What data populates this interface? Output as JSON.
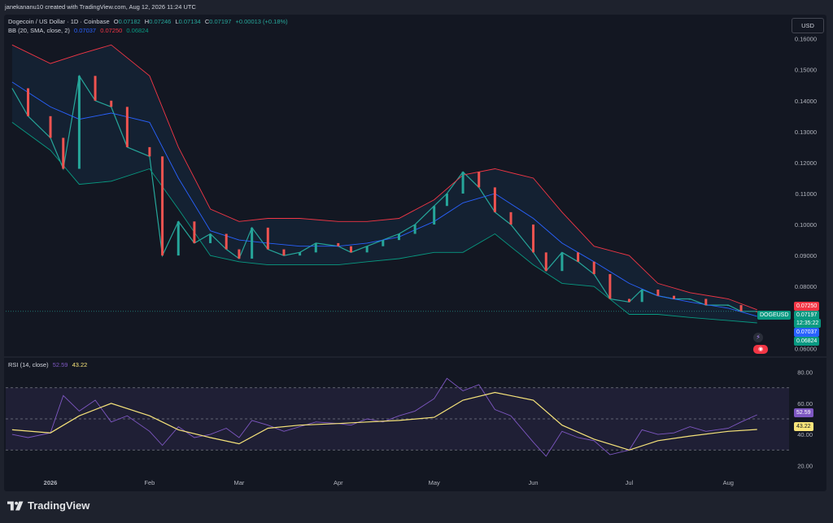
{
  "header": {
    "attribution": "janekananu10 created with TradingView.com, Aug 12, 2026 11:24 UTC"
  },
  "legend": {
    "symbol": "Dogecoin / US Dollar · 1D · Coinbase",
    "o_label": "O",
    "o_value": "0.07182",
    "h_label": "H",
    "h_value": "0.07246",
    "l_label": "L",
    "l_value": "0.07134",
    "c_label": "C",
    "c_value": "0.07197",
    "change": "+0.00013 (+0.18%)",
    "bb_label": "BB (20, SMA, close, 2)",
    "bb_basis": "0.07037",
    "bb_upper": "0.07250",
    "bb_lower": "0.06824",
    "rsi_label": "RSI (14, close)",
    "rsi_value": "52.59",
    "rsi_ma": "43.22"
  },
  "currency_button": "USD",
  "price_tags": {
    "upper": "0.07250",
    "symbol": "DOGEUSD",
    "close": "0.07197",
    "countdown": "12:35:22",
    "basis": "0.07037",
    "lower": "0.06824",
    "rsi": "52.59",
    "rsi_ma": "43.22"
  },
  "footer": {
    "brand": "TradingView"
  },
  "colors": {
    "up": "#26a69a",
    "down": "#ef5350",
    "bb_upper": "#f23645",
    "bb_basis": "#2962ff",
    "bb_lower": "#089981",
    "rsi": "#7e57c2",
    "rsi_ma": "#f7e47a"
  },
  "chart_data": [
    {
      "type": "line",
      "title": "Dogecoin / US Dollar · 1D · Coinbase",
      "y_axis_ticks": [
        "0.16000",
        "0.15000",
        "0.14000",
        "0.13000",
        "0.12000",
        "0.11000",
        "0.10000",
        "0.09000",
        "0.08000",
        "0.07000",
        "0.06000"
      ],
      "ylim": [
        0.058,
        0.162
      ],
      "x_axis_ticks": [
        "2026",
        "Feb",
        "Mar",
        "Apr",
        "May",
        "Jun",
        "Jul",
        "Aug"
      ],
      "xlim": [
        "2025-12-18",
        "2026-08-20"
      ],
      "grid": false,
      "series": [
        {
          "name": "close",
          "x": [
            "2025-12-20",
            "2025-12-25",
            "2026-01-01",
            "2026-01-05",
            "2026-01-10",
            "2026-01-15",
            "2026-01-20",
            "2026-01-25",
            "2026-02-01",
            "2026-02-05",
            "2026-02-10",
            "2026-02-15",
            "2026-02-20",
            "2026-02-25",
            "2026-03-01",
            "2026-03-05",
            "2026-03-10",
            "2026-03-15",
            "2026-03-20",
            "2026-03-25",
            "2026-04-01",
            "2026-04-05",
            "2026-04-10",
            "2026-04-15",
            "2026-04-20",
            "2026-04-25",
            "2026-05-01",
            "2026-05-05",
            "2026-05-10",
            "2026-05-15",
            "2026-05-20",
            "2026-05-25",
            "2026-06-01",
            "2026-06-05",
            "2026-06-10",
            "2026-06-15",
            "2026-06-20",
            "2026-06-25",
            "2026-07-01",
            "2026-07-05",
            "2026-07-10",
            "2026-07-15",
            "2026-07-20",
            "2026-07-25",
            "2026-08-01",
            "2026-08-05",
            "2026-08-10"
          ],
          "values": [
            0.144,
            0.135,
            0.128,
            0.118,
            0.148,
            0.14,
            0.138,
            0.125,
            0.122,
            0.09,
            0.101,
            0.094,
            0.097,
            0.092,
            0.089,
            0.099,
            0.092,
            0.09,
            0.091,
            0.094,
            0.093,
            0.091,
            0.093,
            0.095,
            0.097,
            0.1,
            0.106,
            0.11,
            0.117,
            0.112,
            0.104,
            0.1,
            0.091,
            0.085,
            0.091,
            0.088,
            0.084,
            0.076,
            0.075,
            0.079,
            0.077,
            0.076,
            0.076,
            0.074,
            0.074,
            0.072,
            0.07197
          ]
        },
        {
          "name": "BB upper",
          "x": [
            "2025-12-20",
            "2026-01-01",
            "2026-01-10",
            "2026-01-20",
            "2026-02-01",
            "2026-02-10",
            "2026-02-20",
            "2026-03-01",
            "2026-03-10",
            "2026-03-20",
            "2026-04-01",
            "2026-04-10",
            "2026-04-20",
            "2026-05-01",
            "2026-05-10",
            "2026-05-20",
            "2026-06-01",
            "2026-06-10",
            "2026-06-20",
            "2026-07-01",
            "2026-07-10",
            "2026-07-20",
            "2026-08-01",
            "2026-08-10"
          ],
          "values": [
            0.158,
            0.152,
            0.155,
            0.158,
            0.148,
            0.125,
            0.105,
            0.101,
            0.102,
            0.102,
            0.101,
            0.101,
            0.102,
            0.108,
            0.116,
            0.118,
            0.115,
            0.104,
            0.093,
            0.09,
            0.081,
            0.078,
            0.076,
            0.0725
          ]
        },
        {
          "name": "BB basis",
          "x": [
            "2025-12-20",
            "2026-01-01",
            "2026-01-10",
            "2026-01-20",
            "2026-02-01",
            "2026-02-10",
            "2026-02-20",
            "2026-03-01",
            "2026-03-10",
            "2026-03-20",
            "2026-04-01",
            "2026-04-10",
            "2026-04-20",
            "2026-05-01",
            "2026-05-10",
            "2026-05-20",
            "2026-06-01",
            "2026-06-10",
            "2026-06-20",
            "2026-07-01",
            "2026-07-10",
            "2026-07-20",
            "2026-08-01",
            "2026-08-10"
          ],
          "values": [
            0.146,
            0.138,
            0.134,
            0.136,
            0.133,
            0.115,
            0.098,
            0.095,
            0.094,
            0.093,
            0.093,
            0.094,
            0.096,
            0.101,
            0.107,
            0.11,
            0.102,
            0.094,
            0.088,
            0.081,
            0.077,
            0.075,
            0.073,
            0.07037
          ]
        },
        {
          "name": "BB lower",
          "x": [
            "2025-12-20",
            "2026-01-01",
            "2026-01-10",
            "2026-01-20",
            "2026-02-01",
            "2026-02-10",
            "2026-02-20",
            "2026-03-01",
            "2026-03-10",
            "2026-03-20",
            "2026-04-01",
            "2026-04-10",
            "2026-04-20",
            "2026-05-01",
            "2026-05-10",
            "2026-05-20",
            "2026-06-01",
            "2026-06-10",
            "2026-06-20",
            "2026-07-01",
            "2026-07-10",
            "2026-07-20",
            "2026-08-01",
            "2026-08-10"
          ],
          "values": [
            0.133,
            0.124,
            0.113,
            0.114,
            0.118,
            0.105,
            0.09,
            0.088,
            0.087,
            0.087,
            0.087,
            0.088,
            0.089,
            0.091,
            0.091,
            0.097,
            0.087,
            0.081,
            0.08,
            0.071,
            0.071,
            0.07,
            0.069,
            0.06824
          ]
        }
      ]
    },
    {
      "type": "line",
      "title": "RSI (14, close)",
      "y_axis_ticks": [
        "80.00",
        "60.00",
        "40.00",
        "20.00"
      ],
      "ylim": [
        15,
        85
      ],
      "bands": [
        30,
        50,
        70
      ],
      "xlim": [
        "2025-12-18",
        "2026-08-20"
      ],
      "series": [
        {
          "name": "RSI",
          "x": [
            "2025-12-20",
            "2025-12-25",
            "2026-01-01",
            "2026-01-05",
            "2026-01-10",
            "2026-01-15",
            "2026-01-20",
            "2026-01-25",
            "2026-02-01",
            "2026-02-05",
            "2026-02-10",
            "2026-02-15",
            "2026-02-20",
            "2026-02-25",
            "2026-03-01",
            "2026-03-05",
            "2026-03-10",
            "2026-03-15",
            "2026-03-20",
            "2026-03-25",
            "2026-04-01",
            "2026-04-05",
            "2026-04-10",
            "2026-04-15",
            "2026-04-20",
            "2026-04-25",
            "2026-05-01",
            "2026-05-05",
            "2026-05-10",
            "2026-05-15",
            "2026-05-20",
            "2026-05-25",
            "2026-06-01",
            "2026-06-05",
            "2026-06-10",
            "2026-06-15",
            "2026-06-20",
            "2026-06-25",
            "2026-07-01",
            "2026-07-05",
            "2026-07-10",
            "2026-07-15",
            "2026-07-20",
            "2026-07-25",
            "2026-08-01",
            "2026-08-05",
            "2026-08-10"
          ],
          "values": [
            40,
            38,
            41,
            65,
            55,
            62,
            48,
            52,
            42,
            33,
            45,
            38,
            40,
            44,
            38,
            49,
            46,
            42,
            45,
            48,
            47,
            46,
            50,
            48,
            52,
            55,
            63,
            76,
            68,
            72,
            56,
            52,
            35,
            26,
            42,
            38,
            36,
            27,
            30,
            43,
            40,
            41,
            45,
            42,
            44,
            48,
            52.59
          ]
        },
        {
          "name": "RSI-based MA",
          "x": [
            "2025-12-20",
            "2026-01-01",
            "2026-01-10",
            "2026-01-20",
            "2026-02-01",
            "2026-02-10",
            "2026-02-20",
            "2026-03-01",
            "2026-03-10",
            "2026-03-20",
            "2026-04-01",
            "2026-04-10",
            "2026-04-20",
            "2026-05-01",
            "2026-05-10",
            "2026-05-20",
            "2026-06-01",
            "2026-06-10",
            "2026-06-20",
            "2026-07-01",
            "2026-07-10",
            "2026-07-20",
            "2026-08-01",
            "2026-08-10"
          ],
          "values": [
            43,
            41,
            52,
            60,
            52,
            43,
            38,
            34,
            44,
            46,
            47,
            48,
            49,
            51,
            62,
            67,
            62,
            46,
            37,
            30,
            36,
            39,
            42,
            43.22
          ]
        }
      ]
    }
  ]
}
